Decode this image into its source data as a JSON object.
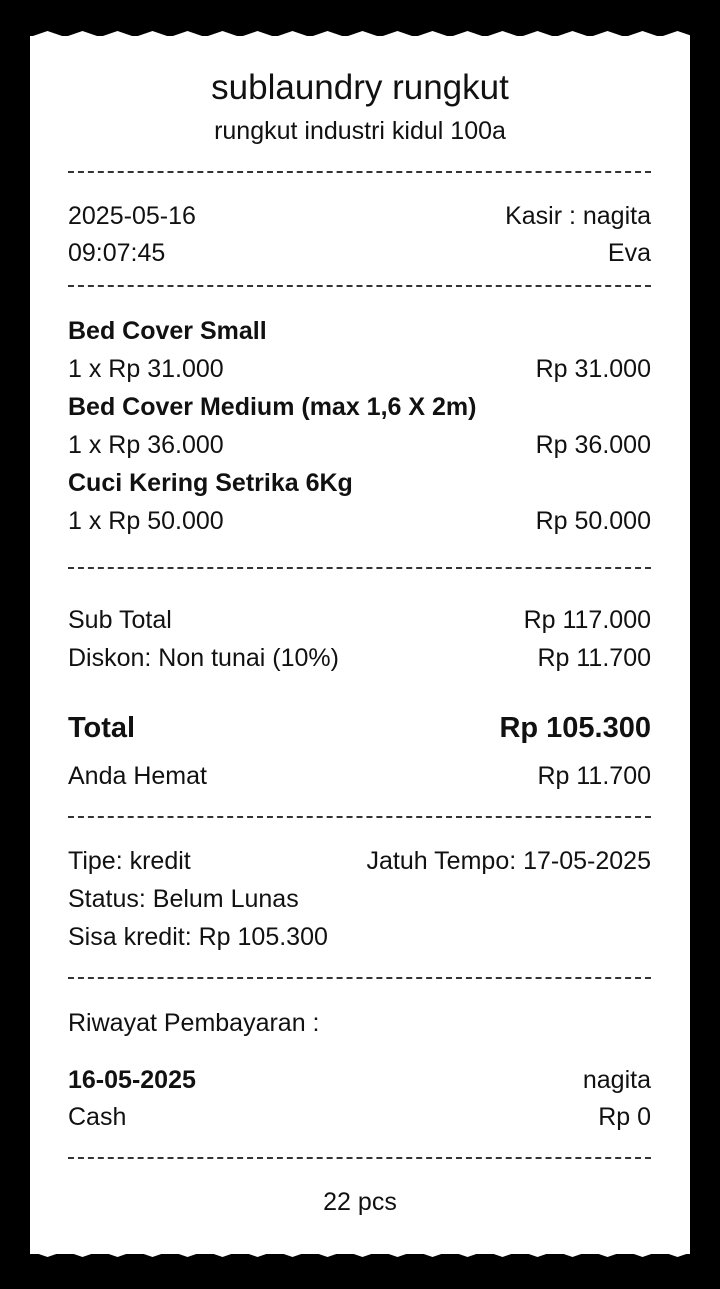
{
  "store": {
    "name": "sublaundry rungkut",
    "address": "rungkut industri kidul 100a"
  },
  "meta": {
    "date": "2025-05-16",
    "time": "09:07:45",
    "cashier": "Kasir : nagita",
    "customer": "Eva"
  },
  "items": [
    {
      "name": "Bed Cover Small",
      "qty_price": "1 x Rp 31.000",
      "total": "Rp 31.000"
    },
    {
      "name": "Bed Cover Medium (max 1,6 X 2m)",
      "qty_price": "1 x Rp 36.000",
      "total": "Rp 36.000"
    },
    {
      "name": "Cuci Kering Setrika 6Kg",
      "qty_price": "1 x Rp 50.000",
      "total": "Rp 50.000"
    }
  ],
  "summary": {
    "subtotal_label": "Sub Total",
    "subtotal": "Rp 117.000",
    "discount_label": "Diskon: Non tunai (10%)",
    "discount": "Rp 11.700",
    "total_label": "Total",
    "total": "Rp 105.300",
    "saved_label": "Anda Hemat",
    "saved": "Rp 11.700"
  },
  "credit": {
    "type": "Tipe: kredit",
    "due": "Jatuh Tempo: 17-05-2025",
    "status": "Status: Belum Lunas",
    "remaining": "Sisa kredit: Rp 105.300"
  },
  "history": {
    "title": "Riwayat Pembayaran :",
    "entries": [
      {
        "date": "16-05-2025",
        "user": "nagita",
        "method": "Cash",
        "amount": "Rp 0"
      }
    ]
  },
  "footer": {
    "pcs": "22 pcs"
  }
}
